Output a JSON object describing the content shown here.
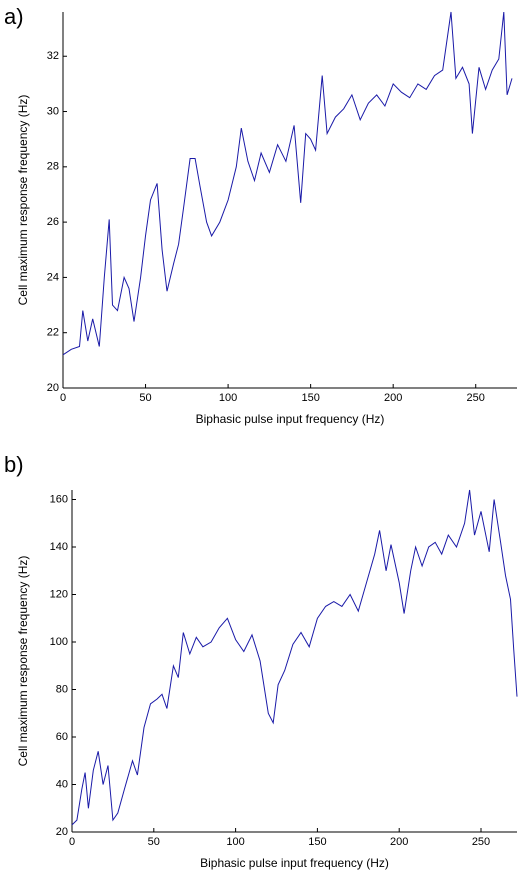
{
  "chart_data": [
    {
      "type": "line",
      "panel_label": "a)",
      "xlabel": "Biphasic pulse input frequency (Hz)",
      "ylabel": "Cell maximum response frequency (Hz)",
      "xlim": [
        0,
        275
      ],
      "ylim": [
        20,
        33.6
      ],
      "xticks": [
        0,
        50,
        100,
        150,
        200,
        250
      ],
      "yticks": [
        20,
        22,
        24,
        26,
        28,
        30,
        32
      ],
      "series": [
        {
          "color": "#1a1aa8",
          "x": [
            0,
            5,
            10,
            12,
            15,
            18,
            22,
            25,
            28,
            30,
            33,
            37,
            40,
            43,
            47,
            50,
            53,
            57,
            60,
            63,
            67,
            70,
            73,
            77,
            80,
            83,
            87,
            90,
            95,
            100,
            105,
            108,
            112,
            116,
            120,
            125,
            130,
            135,
            140,
            144,
            147,
            150,
            153,
            157,
            160,
            165,
            170,
            175,
            180,
            185,
            190,
            195,
            200,
            205,
            210,
            215,
            220,
            225,
            230,
            235,
            238,
            242,
            246,
            248,
            252,
            256,
            260,
            264,
            267,
            269,
            272
          ],
          "values": [
            21.2,
            21.4,
            21.5,
            22.8,
            21.7,
            22.5,
            21.5,
            24,
            26.1,
            23,
            22.8,
            24,
            23.6,
            22.4,
            24,
            25.5,
            26.8,
            27.4,
            25,
            23.5,
            24.5,
            25.2,
            26.5,
            28.3,
            28.3,
            27.3,
            26,
            25.5,
            26,
            26.8,
            28,
            29.4,
            28.2,
            27.5,
            28.5,
            27.8,
            28.8,
            28.2,
            29.5,
            26.7,
            29.2,
            29,
            28.6,
            31.3,
            29.2,
            29.8,
            30.1,
            30.6,
            29.7,
            30.3,
            30.6,
            30.2,
            31,
            30.7,
            30.5,
            31,
            30.8,
            31.3,
            31.5,
            33.6,
            31.2,
            31.6,
            31,
            29.2,
            31.6,
            30.8,
            31.5,
            31.9,
            33.6,
            30.6,
            31.2
          ]
        }
      ]
    },
    {
      "type": "line",
      "panel_label": "b)",
      "xlabel": "Biphasic pulse input frequency (Hz)",
      "ylabel": "Cell maximum response frequency (Hz)",
      "xlim": [
        0,
        272
      ],
      "ylim": [
        20,
        164
      ],
      "xticks": [
        0,
        50,
        100,
        150,
        200,
        250
      ],
      "yticks": [
        20,
        40,
        60,
        80,
        100,
        120,
        140,
        160
      ],
      "series": [
        {
          "color": "#1a1aa8",
          "x": [
            0,
            3,
            6,
            8,
            10,
            13,
            16,
            19,
            22,
            25,
            28,
            32,
            37,
            40,
            44,
            48,
            52,
            55,
            58,
            62,
            65,
            68,
            72,
            76,
            80,
            85,
            90,
            95,
            100,
            105,
            110,
            115,
            120,
            123,
            126,
            130,
            135,
            140,
            145,
            150,
            155,
            160,
            165,
            170,
            175,
            180,
            185,
            188,
            192,
            195,
            200,
            203,
            207,
            210,
            214,
            218,
            222,
            226,
            230,
            235,
            240,
            243,
            246,
            250,
            255,
            258,
            262,
            265,
            268,
            270,
            272
          ],
          "values": [
            23,
            25,
            38,
            45,
            30,
            46,
            54,
            40,
            48,
            25,
            28,
            38,
            50,
            44,
            64,
            74,
            76,
            78,
            72,
            90,
            85,
            104,
            95,
            102,
            98,
            100,
            106,
            110,
            101,
            96,
            103,
            92,
            70,
            66,
            82,
            88,
            99,
            104,
            98,
            110,
            115,
            117,
            115,
            120,
            113,
            125,
            137,
            147,
            130,
            141,
            125,
            112,
            130,
            140,
            132,
            140,
            142,
            137,
            145,
            140,
            150,
            164,
            145,
            155,
            138,
            160,
            142,
            128,
            118,
            97,
            77
          ]
        }
      ]
    }
  ]
}
